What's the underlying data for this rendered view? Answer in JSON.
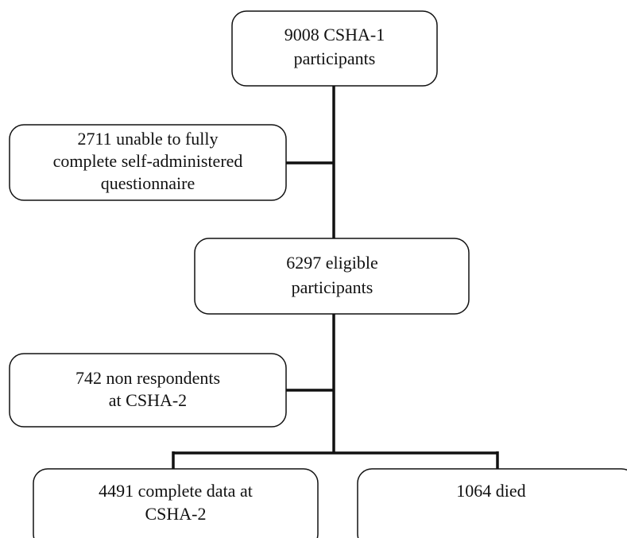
{
  "nodes": [
    {
      "lines": [
        "9008 CSHA-1",
        "participants"
      ]
    },
    {
      "lines": [
        "2711 unable to fully",
        "complete self-administered",
        "questionnaire"
      ]
    },
    {
      "lines": [
        "6297 eligible",
        "participants"
      ]
    },
    {
      "lines": [
        "742 non respondents",
        "at CSHA-2"
      ]
    },
    {
      "lines": [
        "4491 complete data at",
        "CSHA-2"
      ]
    },
    {
      "lines": [
        "1064 died"
      ]
    }
  ]
}
